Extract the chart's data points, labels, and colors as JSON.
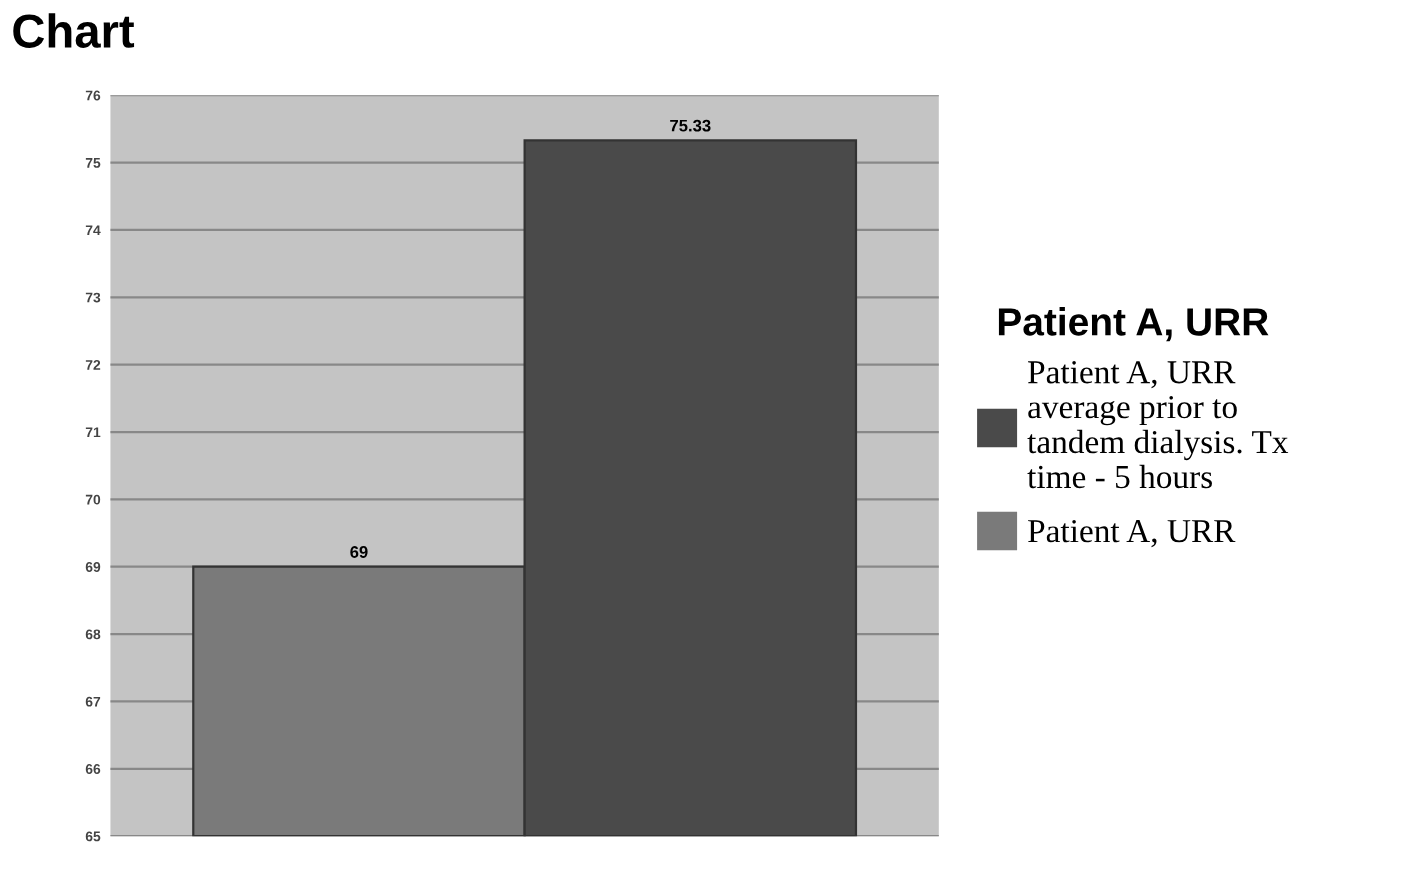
{
  "chart_data": {
    "type": "bar",
    "title": "Chart",
    "legend_title": "Patient A, URR",
    "categories": [
      null
    ],
    "series": [
      {
        "name": "Patient A, URR",
        "color": "#7a7a7a",
        "values": [
          69
        ]
      },
      {
        "name": "Patient A, URR average prior to tandem dialysis. Tx time - 5 hours",
        "color": "#4a4a4a",
        "values": [
          75.33
        ]
      }
    ],
    "ylim": [
      65,
      76
    ],
    "yticks": [
      65,
      66,
      67,
      68,
      69,
      70,
      71,
      72,
      73,
      74,
      75,
      76
    ],
    "grid": "y",
    "legend": "right",
    "data_labels": true
  }
}
